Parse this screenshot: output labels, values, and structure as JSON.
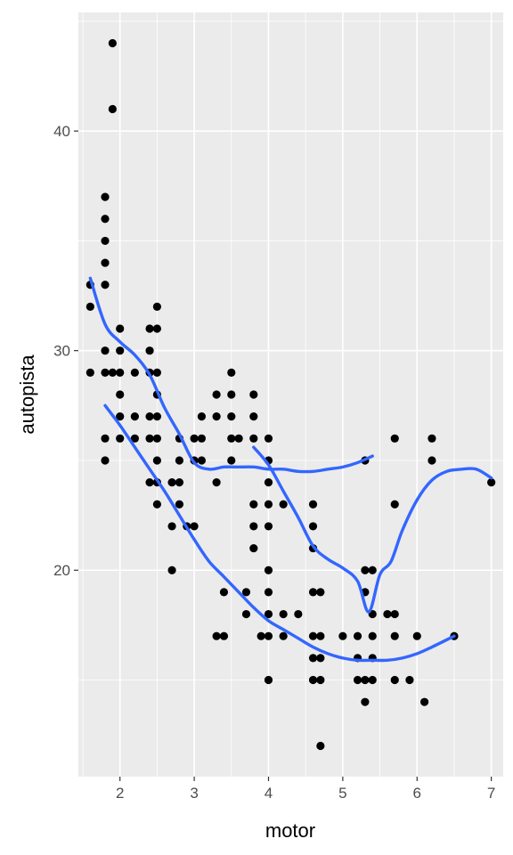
{
  "chart_data": {
    "type": "scatter",
    "title": "",
    "xlabel": "motor",
    "ylabel": "autopista",
    "xlim": [
      1.44,
      7.16
    ],
    "ylim": [
      10.6,
      45.4
    ],
    "x_ticks": [
      2,
      3,
      4,
      5,
      6,
      7
    ],
    "y_ticks": [
      20,
      30,
      40
    ],
    "grid": true,
    "legend": "none",
    "colors": {
      "panel_background": "#ebebeb",
      "grid": "#ffffff",
      "points": "#000000",
      "smooth_lines": "#3366ff"
    },
    "points": [
      [
        1.6,
        33
      ],
      [
        1.6,
        32
      ],
      [
        1.6,
        29
      ],
      [
        1.8,
        37
      ],
      [
        1.8,
        36
      ],
      [
        1.8,
        35
      ],
      [
        1.8,
        34
      ],
      [
        1.8,
        33
      ],
      [
        1.8,
        30
      ],
      [
        1.8,
        29
      ],
      [
        1.8,
        26
      ],
      [
        1.8,
        25
      ],
      [
        1.9,
        44
      ],
      [
        1.9,
        41
      ],
      [
        1.9,
        29
      ],
      [
        2.0,
        31
      ],
      [
        2.0,
        30
      ],
      [
        2.0,
        29
      ],
      [
        2.0,
        28
      ],
      [
        2.0,
        27
      ],
      [
        2.0,
        26
      ],
      [
        2.2,
        29
      ],
      [
        2.2,
        27
      ],
      [
        2.2,
        26
      ],
      [
        2.4,
        31
      ],
      [
        2.4,
        30
      ],
      [
        2.4,
        29
      ],
      [
        2.4,
        27
      ],
      [
        2.4,
        26
      ],
      [
        2.4,
        24
      ],
      [
        2.5,
        32
      ],
      [
        2.5,
        31
      ],
      [
        2.5,
        29
      ],
      [
        2.5,
        28
      ],
      [
        2.5,
        27
      ],
      [
        2.5,
        26
      ],
      [
        2.5,
        25
      ],
      [
        2.5,
        24
      ],
      [
        2.5,
        23
      ],
      [
        2.7,
        24
      ],
      [
        2.7,
        22
      ],
      [
        2.7,
        20
      ],
      [
        2.8,
        26
      ],
      [
        2.8,
        25
      ],
      [
        2.8,
        24
      ],
      [
        2.8,
        23
      ],
      [
        2.9,
        22
      ],
      [
        3.0,
        26
      ],
      [
        3.0,
        25
      ],
      [
        3.0,
        22
      ],
      [
        3.1,
        27
      ],
      [
        3.1,
        26
      ],
      [
        3.1,
        25
      ],
      [
        3.3,
        28
      ],
      [
        3.3,
        27
      ],
      [
        3.3,
        24
      ],
      [
        3.3,
        17
      ],
      [
        3.4,
        19
      ],
      [
        3.4,
        17
      ],
      [
        3.5,
        29
      ],
      [
        3.5,
        28
      ],
      [
        3.5,
        27
      ],
      [
        3.5,
        26
      ],
      [
        3.5,
        25
      ],
      [
        3.6,
        26
      ],
      [
        3.7,
        19
      ],
      [
        3.7,
        18
      ],
      [
        3.8,
        28
      ],
      [
        3.8,
        27
      ],
      [
        3.8,
        26
      ],
      [
        3.8,
        23
      ],
      [
        3.8,
        22
      ],
      [
        3.8,
        21
      ],
      [
        3.9,
        17
      ],
      [
        4.0,
        26
      ],
      [
        4.0,
        25
      ],
      [
        4.0,
        24
      ],
      [
        4.0,
        23
      ],
      [
        4.0,
        22
      ],
      [
        4.0,
        20
      ],
      [
        4.0,
        19
      ],
      [
        4.0,
        18
      ],
      [
        4.0,
        17
      ],
      [
        4.0,
        15
      ],
      [
        4.2,
        23
      ],
      [
        4.2,
        18
      ],
      [
        4.2,
        17
      ],
      [
        4.4,
        18
      ],
      [
        4.6,
        23
      ],
      [
        4.6,
        22
      ],
      [
        4.6,
        21
      ],
      [
        4.6,
        19
      ],
      [
        4.6,
        17
      ],
      [
        4.6,
        16
      ],
      [
        4.6,
        15
      ],
      [
        4.7,
        19
      ],
      [
        4.7,
        17
      ],
      [
        4.7,
        16
      ],
      [
        4.7,
        15
      ],
      [
        4.7,
        12
      ],
      [
        5.0,
        17
      ],
      [
        5.2,
        17
      ],
      [
        5.2,
        16
      ],
      [
        5.2,
        15
      ],
      [
        5.3,
        25
      ],
      [
        5.3,
        20
      ],
      [
        5.3,
        19
      ],
      [
        5.3,
        15
      ],
      [
        5.3,
        14
      ],
      [
        5.4,
        20
      ],
      [
        5.4,
        18
      ],
      [
        5.4,
        17
      ],
      [
        5.4,
        16
      ],
      [
        5.4,
        15
      ],
      [
        5.6,
        18
      ],
      [
        5.7,
        26
      ],
      [
        5.7,
        23
      ],
      [
        5.7,
        18
      ],
      [
        5.7,
        17
      ],
      [
        5.7,
        15
      ],
      [
        5.9,
        15
      ],
      [
        6.0,
        17
      ],
      [
        6.1,
        14
      ],
      [
        6.2,
        26
      ],
      [
        6.2,
        25
      ],
      [
        6.5,
        17
      ],
      [
        7.0,
        24
      ]
    ],
    "series": [
      {
        "x": [
          1.6,
          1.8,
          2.0,
          2.2,
          2.4,
          2.6,
          2.8,
          3.0,
          3.2,
          3.4,
          3.6,
          3.8,
          4.0,
          4.2,
          4.4,
          4.6,
          4.8,
          5.0,
          5.2,
          5.4
        ],
        "y": [
          33.3,
          31.2,
          30.4,
          29.8,
          28.9,
          27.4,
          26.2,
          24.9,
          24.6,
          24.7,
          24.7,
          24.7,
          24.6,
          24.6,
          24.5,
          24.5,
          24.6,
          24.7,
          24.9,
          25.2
        ]
      },
      {
        "x": [
          3.8,
          4.0,
          4.2,
          4.4,
          4.6,
          4.8,
          5.0,
          5.2,
          5.35,
          5.5,
          5.65,
          5.8,
          6.0,
          6.2,
          6.4,
          6.6,
          6.8,
          7.0
        ],
        "y": [
          25.6,
          24.8,
          23.6,
          22.4,
          21.1,
          20.5,
          20.1,
          19.5,
          18.1,
          19.8,
          20.4,
          21.8,
          23.2,
          24.1,
          24.5,
          24.6,
          24.6,
          24.2
        ]
      },
      {
        "x": [
          1.8,
          2.0,
          2.2,
          2.4,
          2.6,
          2.8,
          3.0,
          3.2,
          3.4,
          3.6,
          3.8,
          4.0,
          4.2,
          4.4,
          4.6,
          4.8,
          5.0,
          5.2,
          5.4,
          5.6,
          5.8,
          6.0,
          6.2,
          6.5
        ],
        "y": [
          27.5,
          26.6,
          25.6,
          24.6,
          23.6,
          22.5,
          21.4,
          20.4,
          19.7,
          19.0,
          18.3,
          17.7,
          17.3,
          16.9,
          16.5,
          16.2,
          16.0,
          15.9,
          15.9,
          15.9,
          16.0,
          16.2,
          16.5,
          17.0
        ]
      }
    ]
  }
}
